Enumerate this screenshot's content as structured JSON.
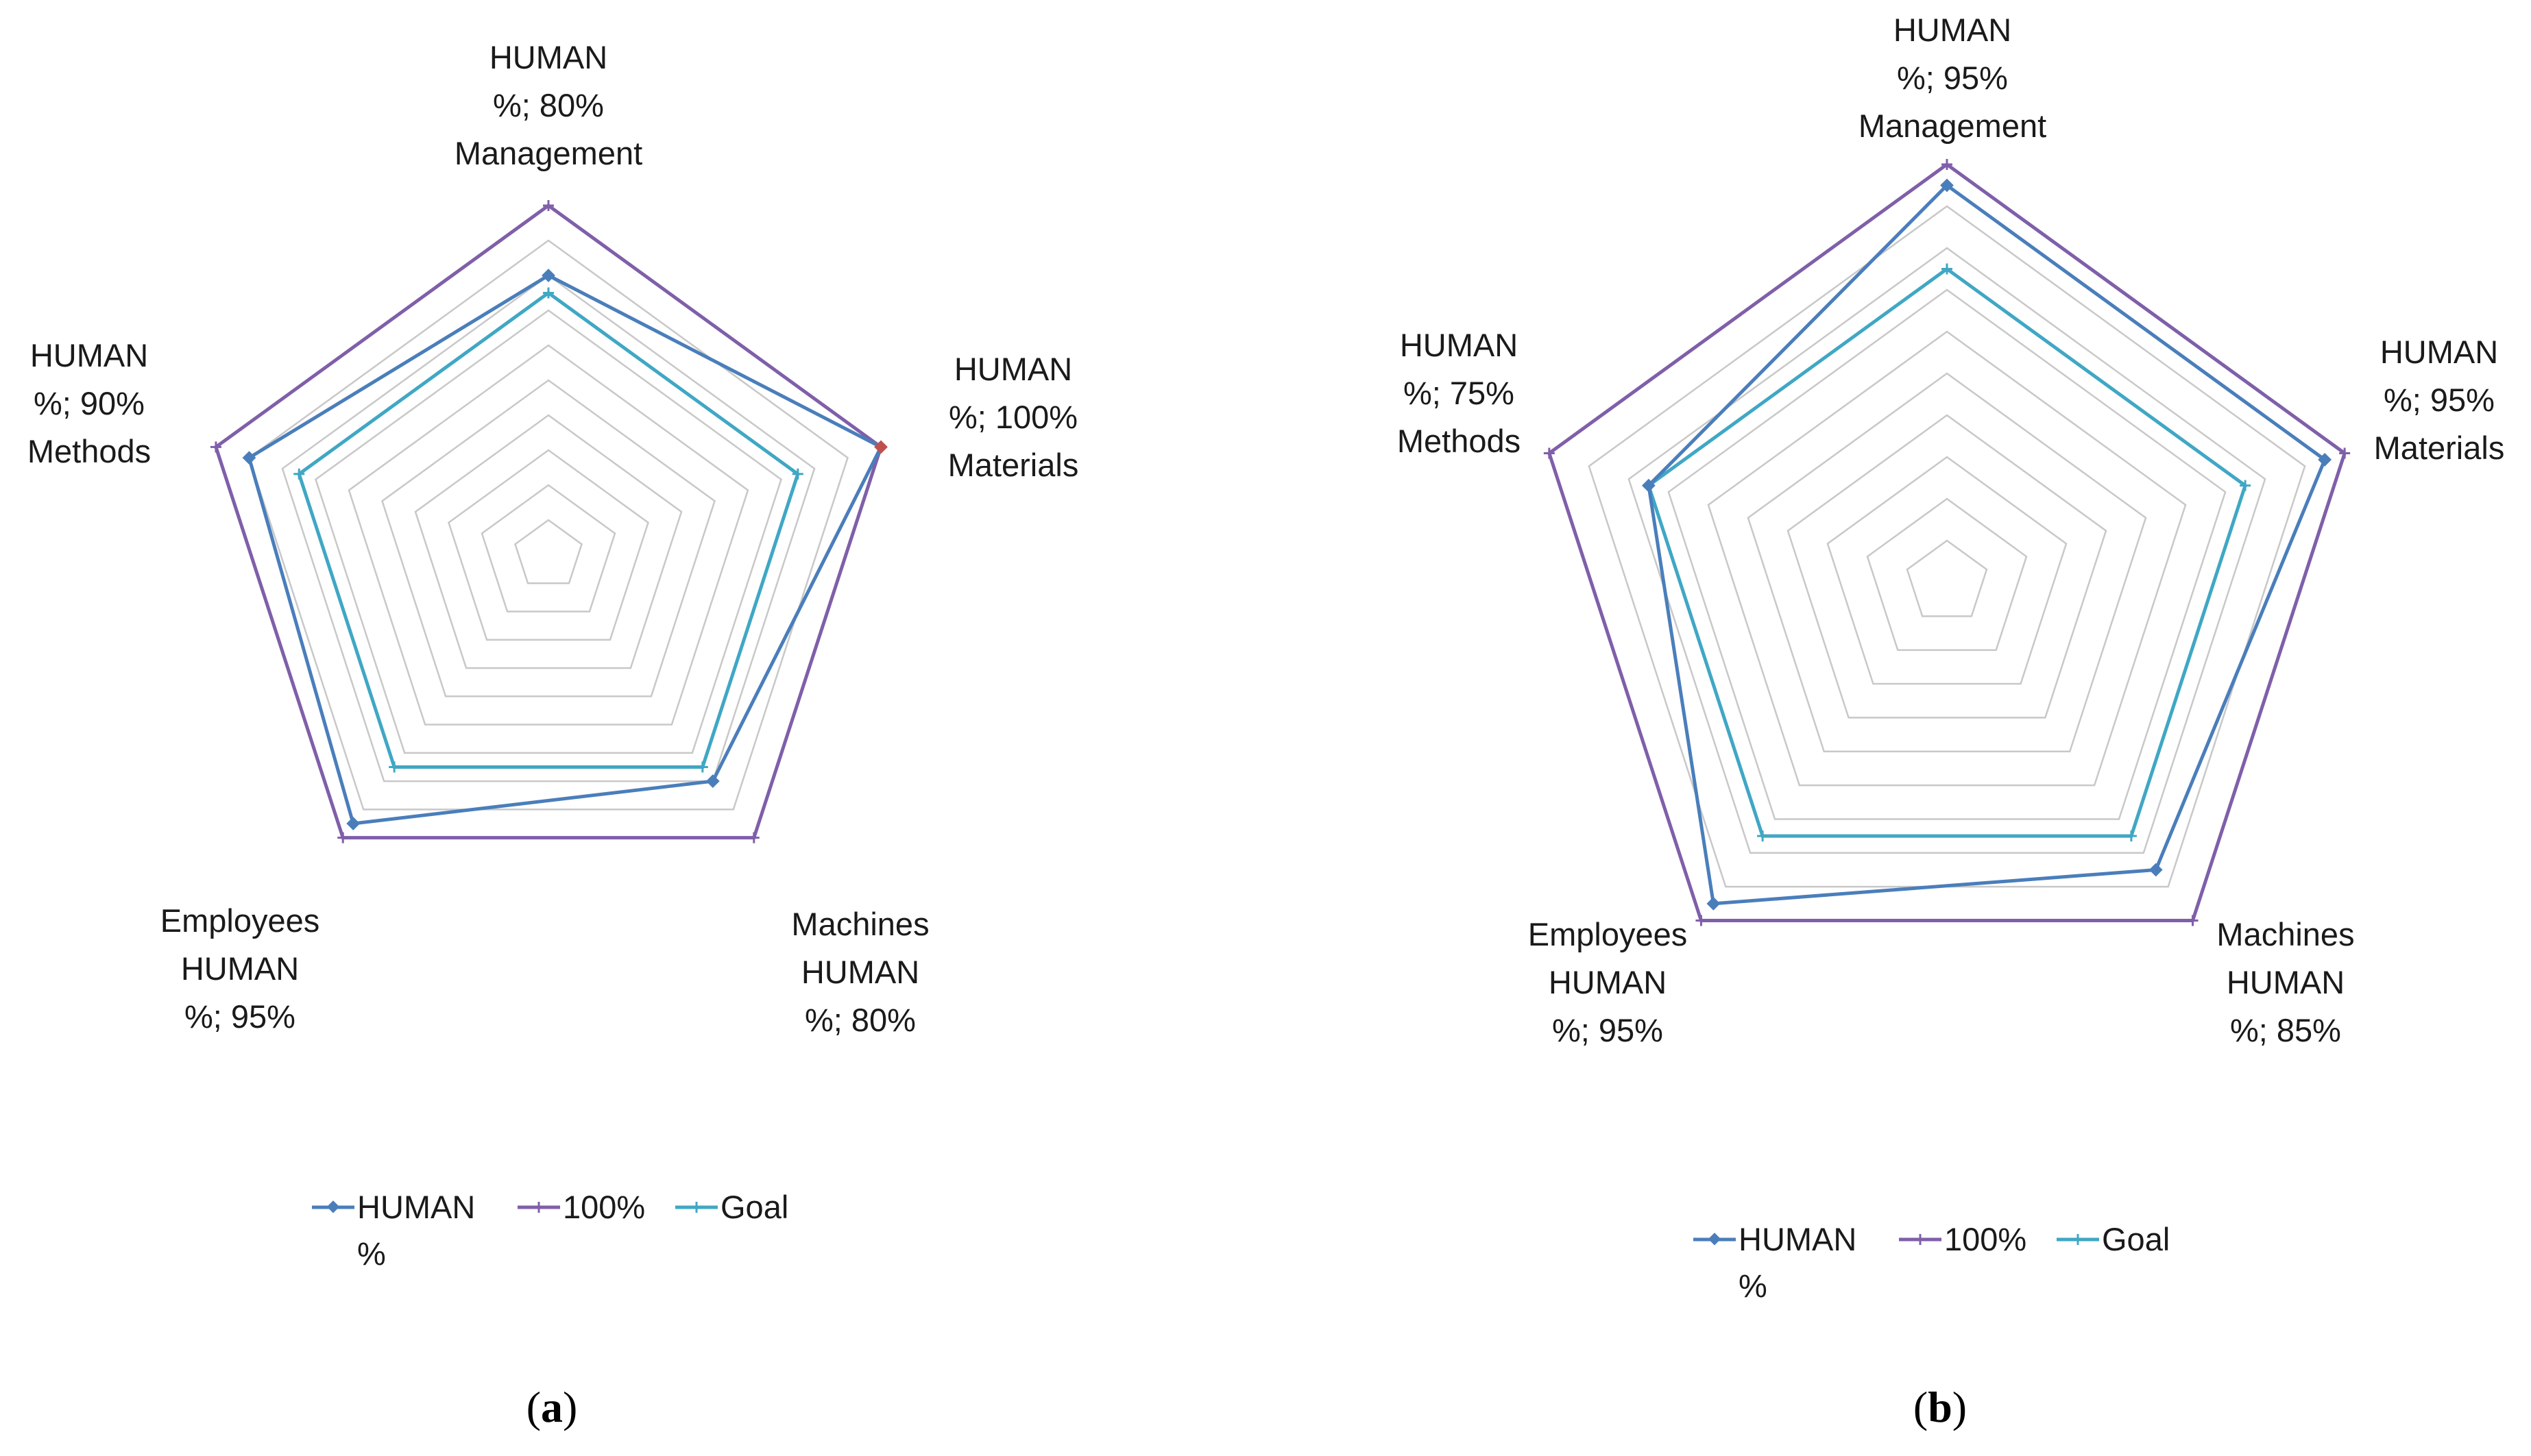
{
  "chart_data": [
    {
      "type": "radar",
      "caption_letter": "a",
      "axes": [
        "Management",
        "Materials",
        "Machines",
        "Employees",
        "Methods"
      ],
      "r_range": [
        0,
        100
      ],
      "grid_levels": 10,
      "series": [
        {
          "name": "HUMAN %",
          "values": [
            80,
            100,
            80,
            95,
            90
          ],
          "color": "#4a7ebb"
        },
        {
          "name": "100%",
          "values": [
            100,
            100,
            100,
            100,
            100
          ],
          "color": "#7f5fa9"
        },
        {
          "name": "Goal",
          "values": [
            75,
            75,
            75,
            75,
            75
          ],
          "color": "#40a7c4"
        }
      ],
      "point_labels": [
        {
          "axis": "Management",
          "lines": [
            "HUMAN",
            "%; 80%",
            "Management"
          ]
        },
        {
          "axis": "Materials",
          "lines": [
            "HUMAN",
            "%; 100%",
            "Materials"
          ]
        },
        {
          "axis": "Machines",
          "lines": [
            "Machines",
            "HUMAN",
            "%; 80%"
          ]
        },
        {
          "axis": "Employees",
          "lines": [
            "Employees",
            "HUMAN",
            "%; 95%"
          ]
        },
        {
          "axis": "Methods",
          "lines": [
            "HUMAN",
            "%; 90%",
            "Methods"
          ]
        }
      ],
      "highlight_color": "#c0504d",
      "legend": [
        {
          "label_lines": [
            "HUMAN",
            "%"
          ],
          "color": "#4a7ebb"
        },
        {
          "label_lines": [
            "100%"
          ],
          "color": "#7f5fa9"
        },
        {
          "label_lines": [
            "Goal"
          ],
          "color": "#40a7c4"
        }
      ]
    },
    {
      "type": "radar",
      "caption_letter": "b",
      "axes": [
        "Management",
        "Materials",
        "Machines",
        "Employees",
        "Methods"
      ],
      "r_range": [
        0,
        100
      ],
      "grid_levels": 10,
      "series": [
        {
          "name": "HUMAN %",
          "values": [
            95,
            95,
            85,
            95,
            75
          ],
          "color": "#4a7ebb"
        },
        {
          "name": "100%",
          "values": [
            100,
            100,
            100,
            100,
            100
          ],
          "color": "#7f5fa9"
        },
        {
          "name": "Goal",
          "values": [
            75,
            75,
            75,
            75,
            75
          ],
          "color": "#40a7c4"
        }
      ],
      "point_labels": [
        {
          "axis": "Management",
          "lines": [
            "HUMAN",
            "%; 95%",
            "Management"
          ]
        },
        {
          "axis": "Materials",
          "lines": [
            "HUMAN",
            "%; 95%",
            "Materials"
          ]
        },
        {
          "axis": "Machines",
          "lines": [
            "Machines",
            "HUMAN",
            "%; 85%"
          ]
        },
        {
          "axis": "Employees",
          "lines": [
            "Employees",
            "HUMAN",
            "%; 95%"
          ]
        },
        {
          "axis": "Methods",
          "lines": [
            "HUMAN",
            "%; 75%",
            "Methods"
          ]
        }
      ],
      "highlight_color": "#c0504d",
      "legend": [
        {
          "label_lines": [
            "HUMAN",
            "%"
          ],
          "color": "#4a7ebb"
        },
        {
          "label_lines": [
            "100%"
          ],
          "color": "#7f5fa9"
        },
        {
          "label_lines": [
            "Goal"
          ],
          "color": "#40a7c4"
        }
      ]
    }
  ]
}
